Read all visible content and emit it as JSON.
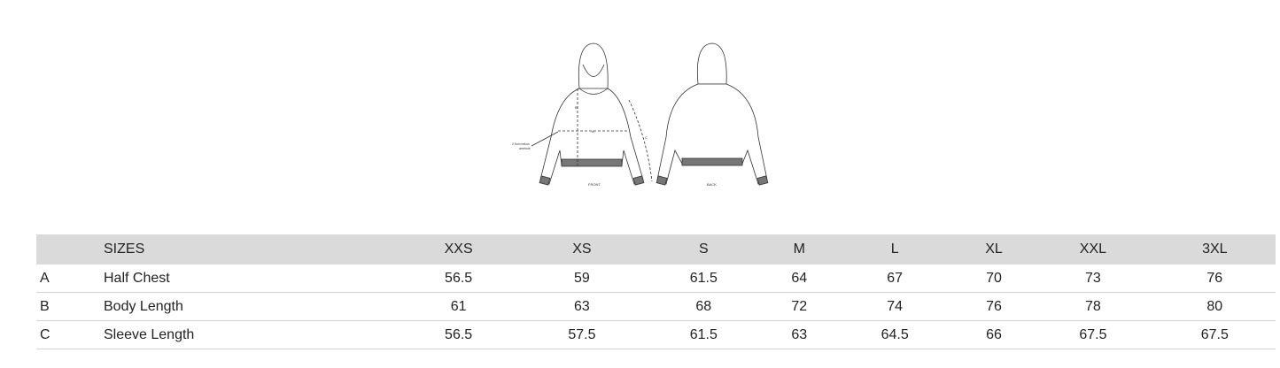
{
  "diagram": {
    "front_label": "FRONT",
    "back_label": "BACK",
    "note_line1": "2.5cm below",
    "note_line2": "armhole",
    "marker_a": "A",
    "marker_b": "B",
    "marker_c": "C"
  },
  "table": {
    "header_label": "SIZES",
    "sizes": [
      "XXS",
      "XS",
      "S",
      "M",
      "L",
      "XL",
      "XXL",
      "3XL"
    ],
    "rows": [
      {
        "code": "A",
        "label": "Half Chest",
        "values": [
          "56.5",
          "59",
          "61.5",
          "64",
          "67",
          "70",
          "73",
          "76"
        ]
      },
      {
        "code": "B",
        "label": "Body Length",
        "values": [
          "61",
          "63",
          "68",
          "72",
          "74",
          "76",
          "78",
          "80"
        ]
      },
      {
        "code": "C",
        "label": "Sleeve Length",
        "values": [
          "56.5",
          "57.5",
          "61.5",
          "63",
          "64.5",
          "66",
          "67.5",
          "67.5"
        ]
      }
    ]
  }
}
